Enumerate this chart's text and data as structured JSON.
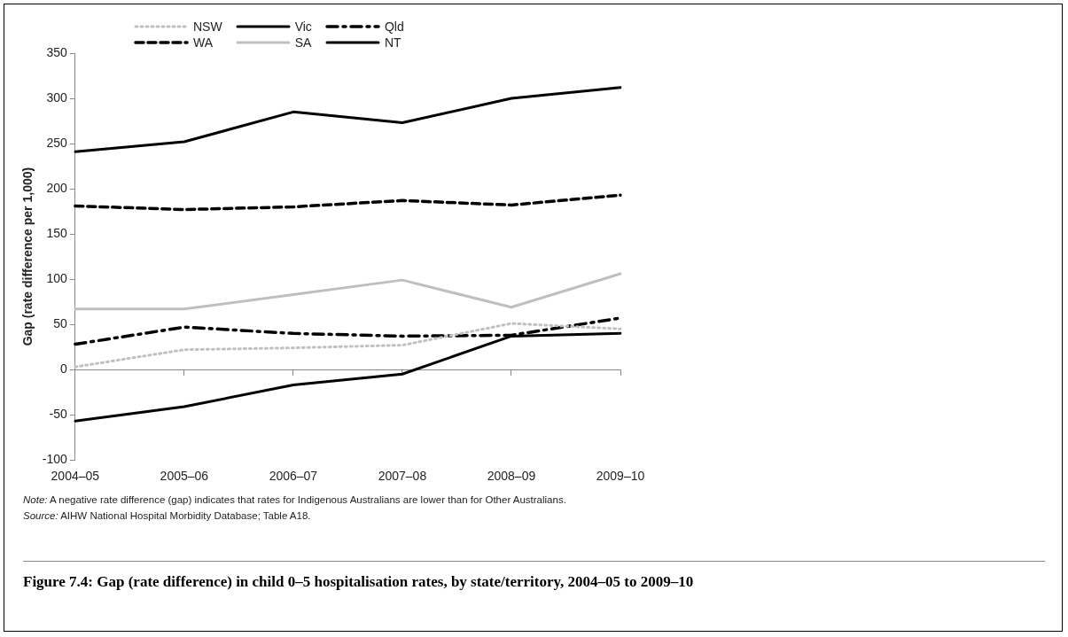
{
  "chart_data": {
    "type": "line",
    "title": "Figure 7.4: Gap (rate difference) in child 0–5 hospitalisation rates, by state/territory, 2004–05 to 2009–10",
    "ylabel": "Gap (rate difference per 1,000)",
    "categories": [
      "2004–05",
      "2005–06",
      "2006–07",
      "2007–08",
      "2008–09",
      "2009–10"
    ],
    "series": [
      {
        "name": "NSW",
        "color": "#c0c0c0",
        "line_style": "dotted",
        "values": [
          3,
          22,
          24,
          27,
          51,
          45
        ]
      },
      {
        "name": "Vic",
        "color": "#000000",
        "line_style": "solid",
        "values": [
          -57,
          -41,
          -17,
          -5,
          37,
          40
        ]
      },
      {
        "name": "Qld",
        "color": "#000000",
        "line_style": "dashdot",
        "values": [
          28,
          47,
          40,
          37,
          38,
          57
        ]
      },
      {
        "name": "WA",
        "color": "#000000",
        "line_style": "dashed",
        "values": [
          181,
          177,
          180,
          187,
          182,
          193
        ]
      },
      {
        "name": "SA",
        "color": "#bfbfbf",
        "line_style": "solid",
        "values": [
          67,
          67,
          83,
          99,
          69,
          106
        ]
      },
      {
        "name": "NT",
        "color": "#000000",
        "line_style": "solid",
        "values": [
          241,
          252,
          285,
          273,
          300,
          312
        ]
      }
    ],
    "ylim": [
      -100,
      350
    ],
    "yticks": [
      -100,
      -50,
      0,
      50,
      100,
      150,
      200,
      250,
      300,
      350
    ],
    "legend": "top left",
    "marker": "none",
    "annotations": [
      "Note: A negative rate difference (gap) indicates that rates for Indigenous Australians are lower than for Other Australians.",
      "Source: AIHW National Hospital Morbidity Database; Table A18."
    ]
  }
}
